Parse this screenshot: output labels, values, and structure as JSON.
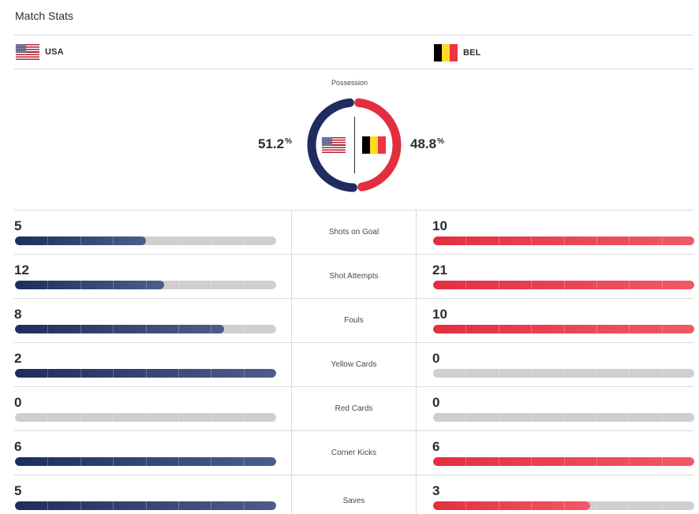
{
  "header": {
    "title": "Match Stats"
  },
  "teams": {
    "home": {
      "abbr": "USA",
      "flag": "us-flag",
      "color": "#1e2d5e"
    },
    "away": {
      "abbr": "BEL",
      "flag": "belgium-flag",
      "color": "#e22f40"
    }
  },
  "possession": {
    "label": "Possession",
    "home_value": "51.2",
    "away_value": "48.8",
    "unit": "%",
    "home_pct": 51.2,
    "away_pct": 48.8
  },
  "stats": [
    {
      "label": "Shots on Goal",
      "home": "5",
      "away": "10",
      "home_fill": 0.5,
      "away_fill": 1.0
    },
    {
      "label": "Shot Attempts",
      "home": "12",
      "away": "21",
      "home_fill": 0.571,
      "away_fill": 1.0
    },
    {
      "label": "Fouls",
      "home": "8",
      "away": "10",
      "home_fill": 0.8,
      "away_fill": 1.0
    },
    {
      "label": "Yellow Cards",
      "home": "2",
      "away": "0",
      "home_fill": 1.0,
      "away_fill": 0
    },
    {
      "label": "Red Cards",
      "home": "0",
      "away": "0",
      "home_fill": 0,
      "away_fill": 0
    },
    {
      "label": "Corner Kicks",
      "home": "6",
      "away": "6",
      "home_fill": 1.0,
      "away_fill": 1.0
    },
    {
      "label": "Saves",
      "home": "5",
      "away": "3",
      "home_fill": 1.0,
      "away_fill": 0.6
    }
  ]
}
